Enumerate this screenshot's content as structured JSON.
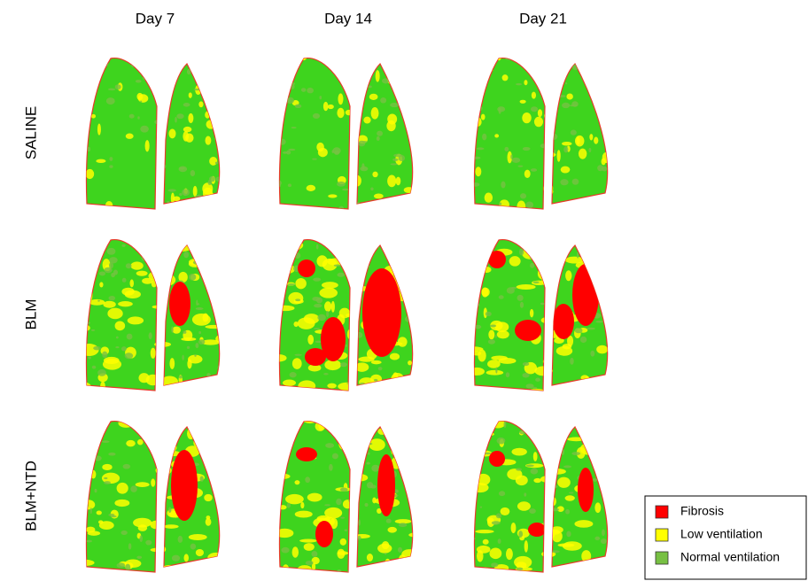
{
  "columns": [
    "Day 7",
    "Day 14",
    "Day 21"
  ],
  "rows": [
    "SALINE",
    "BLM",
    "BLM+NTD"
  ],
  "legend": [
    {
      "label": "Fibrosis",
      "color": "#ff0000"
    },
    {
      "label": "Low ventilation",
      "color": "#ffff00"
    },
    {
      "label": "Normal ventilation",
      "color": "#77c043"
    }
  ]
}
